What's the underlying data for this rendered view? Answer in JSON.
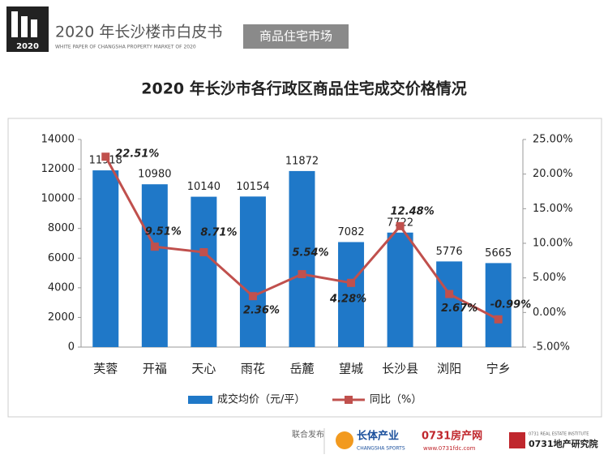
{
  "header": {
    "logo_year": "2020",
    "title": "2020 年长沙楼市白皮书",
    "subtitle": "WHITE PAPER OF CHANGSHA PROPERTY MARKET OF 2020",
    "tag": "商品住宅市场"
  },
  "chart_data": {
    "type": "bar-line",
    "title": "2020 年长沙市各行政区商品住宅成交价格情况",
    "categories": [
      "芙蓉",
      "开福",
      "天心",
      "雨花",
      "岳麓",
      "望城",
      "长沙县",
      "浏阳",
      "宁乡"
    ],
    "series": [
      {
        "name": "成交均价（元/平）",
        "color": "#1f78c8",
        "values": [
          11918,
          10980,
          10140,
          10154,
          11872,
          7082,
          7722,
          5776,
          5665
        ]
      },
      {
        "name": "同比（%）",
        "color": "#c0504d",
        "axis": "y2",
        "values": [
          22.51,
          9.51,
          8.71,
          2.36,
          5.54,
          4.28,
          12.48,
          2.67,
          -0.99
        ],
        "value_labels": [
          "22.51%",
          "9.51%",
          "8.71%",
          "2.36%",
          "5.54%",
          "4.28%",
          "12.48%",
          "2.67%",
          "-0.99%"
        ]
      }
    ],
    "ylim": [
      0,
      14000
    ],
    "yticks": [
      0,
      2000,
      4000,
      6000,
      8000,
      10000,
      12000,
      14000
    ],
    "y2lim": [
      -5,
      25
    ],
    "y2ticks": [
      {
        "value": -5,
        "label": "-5.00%"
      },
      {
        "value": 0,
        "label": "0.00%"
      },
      {
        "value": 5,
        "label": "5.00%"
      },
      {
        "value": 10,
        "label": "10.00%"
      },
      {
        "value": 15,
        "label": "15.00%"
      },
      {
        "value": 20,
        "label": "20.00%"
      },
      {
        "value": 25,
        "label": "25.00%"
      }
    ],
    "legend": "bottom"
  },
  "footer": {
    "label": "联合发布",
    "partners": [
      {
        "name": "长体产业",
        "sub": "CHANGSHA SPORTS"
      },
      {
        "name": "0731房产网",
        "sub": "www.0731fdc.com"
      },
      {
        "name": "0731地产研究院",
        "sub": "0731 REAL ESTATE INSTITUTE"
      }
    ]
  }
}
